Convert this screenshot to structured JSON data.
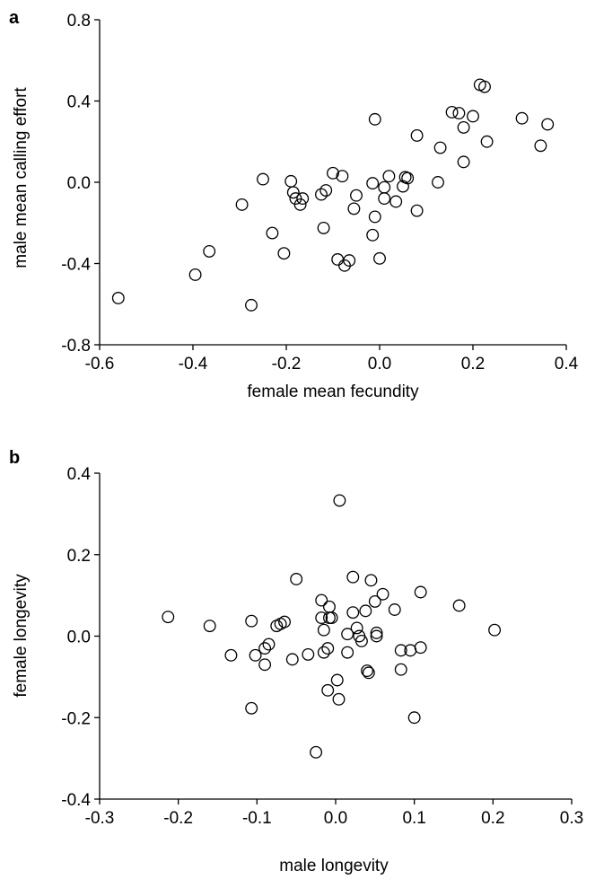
{
  "chart_data": [
    {
      "panel": "a",
      "type": "scatter",
      "xlabel": "female mean fecundity",
      "ylabel": "male mean calling effort",
      "xlim": [
        -0.6,
        0.4
      ],
      "ylim": [
        -0.8,
        0.8
      ],
      "xticks": [
        "-0.6",
        "-0.4",
        "-0.2",
        "0.0",
        "0.2",
        "0.4"
      ],
      "yticks": [
        "-0.8",
        "-0.4",
        "0.0",
        "0.4",
        "0.8"
      ],
      "grid": false,
      "marker": "open-circle",
      "points": [
        [
          -0.56,
          -0.57
        ],
        [
          -0.395,
          -0.455
        ],
        [
          -0.365,
          -0.34
        ],
        [
          -0.275,
          -0.605
        ],
        [
          -0.295,
          -0.11
        ],
        [
          -0.25,
          0.015
        ],
        [
          -0.23,
          -0.25
        ],
        [
          -0.205,
          -0.35
        ],
        [
          -0.19,
          0.005
        ],
        [
          -0.185,
          -0.05
        ],
        [
          -0.18,
          -0.08
        ],
        [
          -0.17,
          -0.11
        ],
        [
          -0.165,
          -0.08
        ],
        [
          -0.125,
          -0.06
        ],
        [
          -0.12,
          -0.225
        ],
        [
          -0.115,
          -0.04
        ],
        [
          -0.1,
          0.045
        ],
        [
          -0.08,
          0.03
        ],
        [
          -0.09,
          -0.38
        ],
        [
          -0.075,
          -0.41
        ],
        [
          -0.065,
          -0.385
        ],
        [
          -0.055,
          -0.13
        ],
        [
          -0.05,
          -0.065
        ],
        [
          -0.015,
          -0.26
        ],
        [
          -0.01,
          -0.17
        ],
        [
          -0.015,
          -0.005
        ],
        [
          -0.01,
          0.31
        ],
        [
          0.0,
          -0.375
        ],
        [
          0.01,
          -0.08
        ],
        [
          0.01,
          -0.025
        ],
        [
          0.02,
          0.03
        ],
        [
          0.035,
          -0.095
        ],
        [
          0.05,
          -0.02
        ],
        [
          0.055,
          0.025
        ],
        [
          0.06,
          0.02
        ],
        [
          0.08,
          -0.14
        ],
        [
          0.08,
          0.23
        ],
        [
          0.125,
          0.0
        ],
        [
          0.13,
          0.17
        ],
        [
          0.155,
          0.345
        ],
        [
          0.17,
          0.34
        ],
        [
          0.18,
          0.1
        ],
        [
          0.18,
          0.27
        ],
        [
          0.2,
          0.325
        ],
        [
          0.215,
          0.48
        ],
        [
          0.225,
          0.47
        ],
        [
          0.23,
          0.2
        ],
        [
          0.305,
          0.315
        ],
        [
          0.345,
          0.18
        ],
        [
          0.36,
          0.285
        ]
      ]
    },
    {
      "panel": "b",
      "type": "scatter",
      "xlabel": "male longevity",
      "ylabel": "female longevity",
      "xlim": [
        -0.3,
        0.3
      ],
      "ylim": [
        -0.4,
        0.4
      ],
      "xticks": [
        "-0.3",
        "-0.2",
        "-0.1",
        "0.0",
        "0.1",
        "0.2",
        "0.3"
      ],
      "yticks": [
        "-0.4",
        "-0.2",
        "0.0",
        "0.2",
        "0.4"
      ],
      "grid": false,
      "marker": "open-circle",
      "points": [
        [
          -0.213,
          0.047
        ],
        [
          -0.16,
          0.025
        ],
        [
          -0.133,
          -0.047
        ],
        [
          -0.107,
          0.037
        ],
        [
          -0.107,
          -0.177
        ],
        [
          -0.102,
          -0.047
        ],
        [
          -0.09,
          -0.07
        ],
        [
          -0.09,
          -0.03
        ],
        [
          -0.085,
          -0.02
        ],
        [
          -0.075,
          0.025
        ],
        [
          -0.07,
          0.03
        ],
        [
          -0.065,
          0.035
        ],
        [
          -0.055,
          -0.057
        ],
        [
          -0.05,
          0.14
        ],
        [
          -0.035,
          -0.045
        ],
        [
          -0.025,
          -0.285
        ],
        [
          -0.018,
          0.088
        ],
        [
          -0.018,
          0.045
        ],
        [
          -0.015,
          0.015
        ],
        [
          -0.015,
          -0.04
        ],
        [
          -0.01,
          -0.133
        ],
        [
          -0.01,
          -0.03
        ],
        [
          -0.008,
          0.072
        ],
        [
          -0.008,
          0.045
        ],
        [
          -0.005,
          0.045
        ],
        [
          0.002,
          -0.108
        ],
        [
          0.004,
          -0.155
        ],
        [
          0.005,
          0.333
        ],
        [
          0.015,
          0.005
        ],
        [
          0.015,
          -0.04
        ],
        [
          0.022,
          0.145
        ],
        [
          0.022,
          0.058
        ],
        [
          0.027,
          0.02
        ],
        [
          0.03,
          0.0
        ],
        [
          0.033,
          -0.012
        ],
        [
          0.038,
          0.062
        ],
        [
          0.04,
          -0.085
        ],
        [
          0.042,
          -0.09
        ],
        [
          0.045,
          0.137
        ],
        [
          0.05,
          0.085
        ],
        [
          0.052,
          0.008
        ],
        [
          0.052,
          0.0
        ],
        [
          0.06,
          0.103
        ],
        [
          0.075,
          0.065
        ],
        [
          0.083,
          -0.035
        ],
        [
          0.083,
          -0.082
        ],
        [
          0.095,
          -0.035
        ],
        [
          0.1,
          -0.2
        ],
        [
          0.108,
          0.108
        ],
        [
          0.108,
          -0.028
        ],
        [
          0.157,
          0.075
        ],
        [
          0.202,
          0.015
        ]
      ]
    }
  ]
}
